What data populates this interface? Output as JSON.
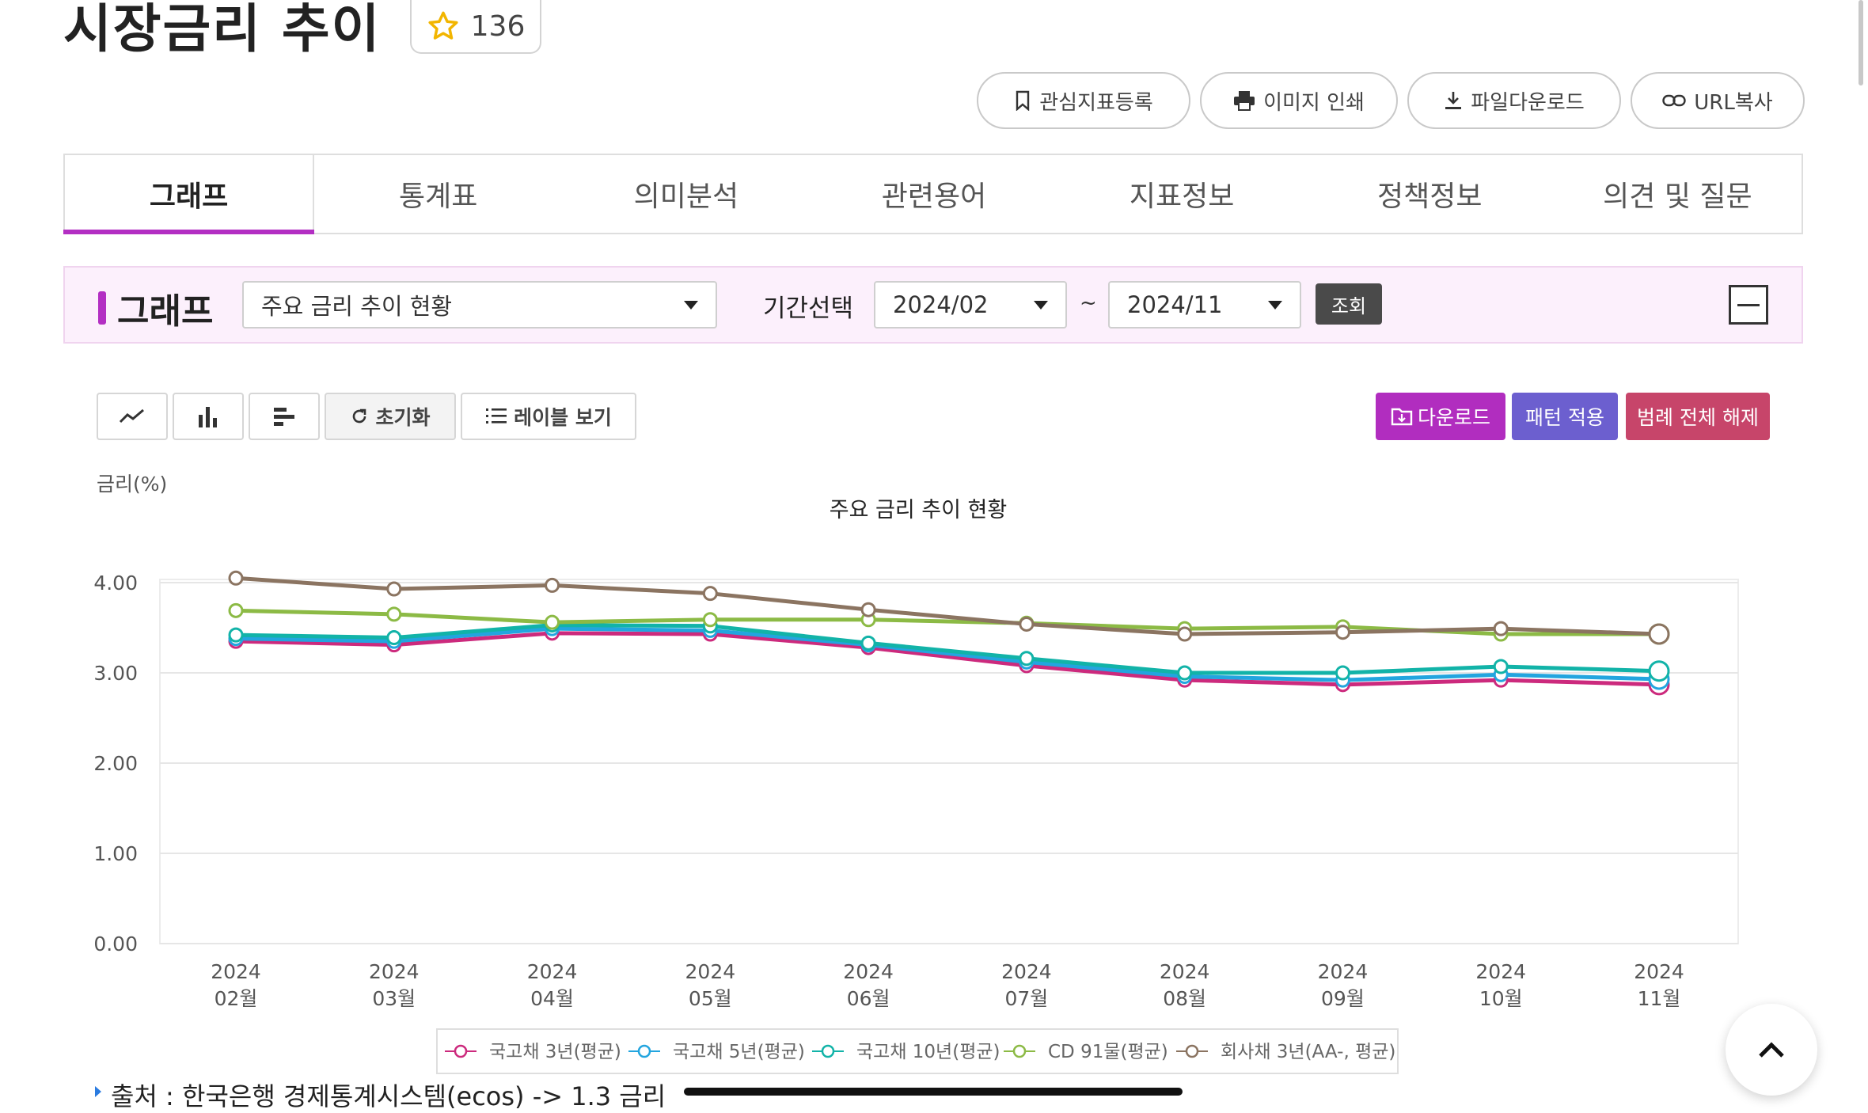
{
  "header": {
    "title": "시장금리 추이",
    "favorite_count": "136",
    "actions": [
      {
        "label": "관심지표등록",
        "icon": "bookmark-icon"
      },
      {
        "label": "이미지 인쇄",
        "icon": "printer-icon"
      },
      {
        "label": "파일다운로드",
        "icon": "download-icon"
      },
      {
        "label": "URL복사",
        "icon": "link-icon"
      }
    ]
  },
  "tabs": [
    "그래프",
    "통계표",
    "의미분석",
    "관련용어",
    "지표정보",
    "정책정보",
    "의견 및 질문"
  ],
  "graph_bar": {
    "label": "그래프",
    "chart_select": "주요 금리 추이 현황",
    "period_label": "기간선택",
    "period_from": "2024/02",
    "period_sep": "~",
    "period_to": "2024/11",
    "lookup_label": "조회"
  },
  "toolbar": {
    "reset_label": "초기화",
    "label_view_label": "레이블 보기",
    "download_label": "다운로드",
    "pattern_label": "패턴 적용",
    "legend_off_label": "범례 전체 해제",
    "colors": {
      "download": "#b12dbf",
      "pattern": "#6c5fcf",
      "legend_off": "#c7456a"
    }
  },
  "chart_data": {
    "type": "line",
    "title": "주요 금리 추이 현황",
    "ylabel": "금리(%)",
    "xlabel": "",
    "ylim": [
      0,
      4
    ],
    "yticks": [
      "0.00",
      "1.00",
      "2.00",
      "3.00",
      "4.00"
    ],
    "categories": [
      "2024 02월",
      "2024 03월",
      "2024 04월",
      "2024 05월",
      "2024 06월",
      "2024 07월",
      "2024 08월",
      "2024 09월",
      "2024 10월",
      "2024 11월"
    ],
    "x_year": [
      "2024",
      "2024",
      "2024",
      "2024",
      "2024",
      "2024",
      "2024",
      "2024",
      "2024",
      "2024"
    ],
    "x_month": [
      "02월",
      "03월",
      "04월",
      "05월",
      "06월",
      "07월",
      "08월",
      "09월",
      "10월",
      "11월"
    ],
    "grid": true,
    "legend_position": "bottom",
    "series": [
      {
        "name": "국고채 3년(평균)",
        "color": "#cc2a7d",
        "values": [
          3.35,
          3.31,
          3.44,
          3.43,
          3.28,
          3.08,
          2.92,
          2.87,
          2.92,
          2.87
        ]
      },
      {
        "name": "국고채 5년(평균)",
        "color": "#23a5df",
        "values": [
          3.38,
          3.35,
          3.49,
          3.47,
          3.31,
          3.12,
          2.96,
          2.92,
          2.98,
          2.93
        ]
      },
      {
        "name": "국고채 10년(평균)",
        "color": "#12b3a8",
        "values": [
          3.42,
          3.39,
          3.53,
          3.52,
          3.33,
          3.16,
          3.0,
          3.0,
          3.07,
          3.02
        ]
      },
      {
        "name": "CD 91물(평균)",
        "color": "#8cba45",
        "values": [
          3.69,
          3.65,
          3.56,
          3.59,
          3.59,
          3.55,
          3.49,
          3.51,
          3.43,
          3.43
        ]
      },
      {
        "name": "회사채 3년(AA-, 평균)",
        "color": "#8b7461",
        "values": [
          4.05,
          3.93,
          3.97,
          3.88,
          3.7,
          3.54,
          3.43,
          3.45,
          3.49,
          3.43
        ]
      }
    ]
  },
  "source": "출처 : 한국은행 경제통계시스템(ecos) -> 1.3 금리"
}
